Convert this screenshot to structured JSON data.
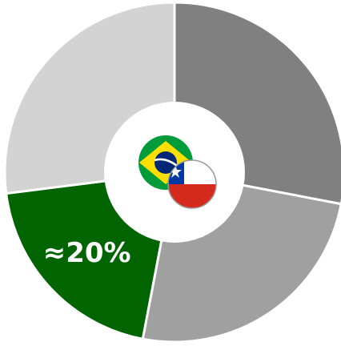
{
  "chart_data": {
    "type": "donut",
    "values": [
      28,
      25,
      20,
      27
    ],
    "value_labels": [
      null,
      null,
      "≈20%",
      null
    ],
    "colors": [
      "#808080",
      "#a0a0a0",
      "#006400",
      "#d3d3d3"
    ]
  }
}
